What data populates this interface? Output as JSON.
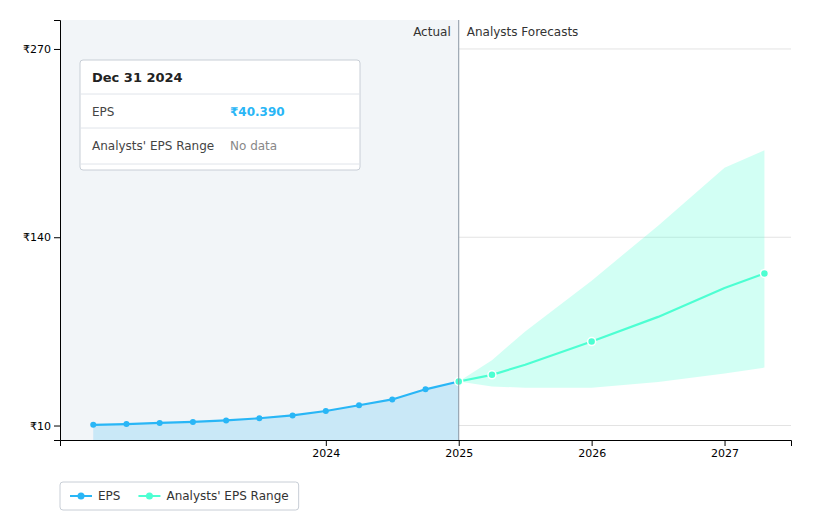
{
  "chart_data": {
    "type": "area",
    "annotations": [
      "Actual",
      "Analysts Forecasts"
    ],
    "series": [
      {
        "name": "EPS",
        "color": "#29b6f6",
        "marker": "circle",
        "x": [
          2022.25,
          2022.5,
          2022.75,
          2023.0,
          2023.25,
          2023.5,
          2023.75,
          2024.0,
          2024.25,
          2024.5,
          2024.75,
          2025.0
        ],
        "values": [
          10.5,
          11.0,
          11.8,
          12.5,
          13.5,
          15.0,
          17.0,
          20.0,
          24.0,
          28.0,
          35.0,
          40.39
        ]
      },
      {
        "name": "Analysts' EPS Range",
        "color": "#4dffd2",
        "marker": "circle",
        "x": [
          2025.0,
          2025.25,
          2025.5,
          2026.0,
          2026.5,
          2027.0,
          2027.3
        ],
        "values": [
          40.39,
          45.0,
          52.0,
          68.0,
          85.0,
          105.0,
          115.0
        ],
        "upper": [
          40.39,
          55.0,
          75.0,
          110.0,
          148.0,
          188.0,
          200.0
        ],
        "lower": [
          40.39,
          37.0,
          36.0,
          36.0,
          40.0,
          46.0,
          50.0
        ],
        "marker_x": [
          2025.0,
          2025.25,
          2026.0,
          2027.3
        ],
        "marker_values": [
          40.39,
          45.0,
          68.0,
          115.0
        ]
      }
    ],
    "divider_x": 2025.0,
    "xlim": [
      2022.0,
      2027.5
    ],
    "xticks": [
      2024,
      2025,
      2026,
      2027
    ],
    "ylim": [
      0,
      290
    ],
    "yticks": [
      {
        "value": 10,
        "label": "₹10"
      },
      {
        "value": 140,
        "label": "₹140"
      },
      {
        "value": 270,
        "label": "₹270"
      }
    ],
    "grid": true,
    "legend": "lower left",
    "tooltip": {
      "title": "Dec 31 2024",
      "rows": [
        {
          "label": "EPS",
          "value": "₹40.390",
          "color": "#29b6f6"
        },
        {
          "label": "Analysts' EPS Range",
          "value": "No data",
          "color": "#888888"
        }
      ]
    }
  }
}
